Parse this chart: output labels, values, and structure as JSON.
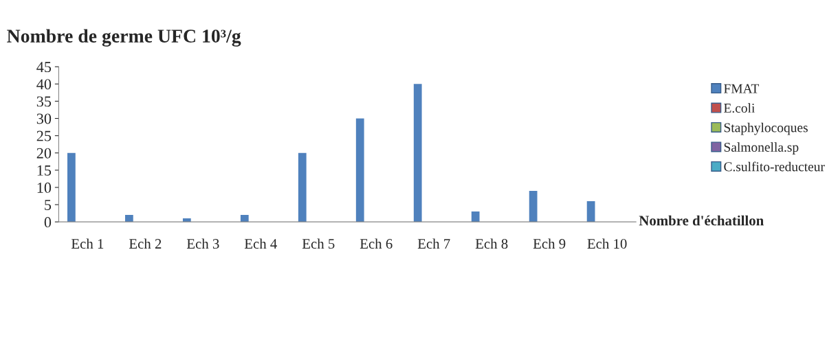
{
  "chart_data": {
    "type": "bar",
    "title": "Nombre de germe UFC 10³/g",
    "xlabel": "Nombre d'échatillon",
    "categories": [
      "Ech 1",
      "Ech 2",
      "Ech 3",
      "Ech 4",
      "Ech 5",
      "Ech 6",
      "Ech 7",
      "Ech 8",
      "Ech 9",
      "Ech 10"
    ],
    "series": [
      {
        "name": "FMAT",
        "color": "#4f81bd",
        "values": [
          20,
          2,
          1,
          2,
          20,
          30,
          40,
          3,
          9,
          6
        ]
      },
      {
        "name": "E.coli",
        "color": "#c0504d",
        "values": [
          0,
          0,
          0,
          0,
          0,
          0,
          0,
          0,
          0,
          0
        ]
      },
      {
        "name": "Staphylocoques",
        "color": "#9bbb59",
        "values": [
          0,
          0,
          0,
          0,
          0,
          0,
          0,
          0,
          0,
          0
        ]
      },
      {
        "name": "Salmonella.sp",
        "color": "#8064a2",
        "values": [
          0,
          0,
          0,
          0,
          0,
          0,
          0,
          0,
          0,
          0
        ]
      },
      {
        "name": "C.sulfito-reducteur",
        "color": "#4bacc6",
        "values": [
          0,
          0,
          0,
          0,
          0,
          0,
          0,
          0,
          0,
          0
        ]
      }
    ],
    "ylim": [
      0,
      45
    ],
    "yticks": [
      0,
      5,
      10,
      15,
      20,
      25,
      30,
      35,
      40,
      45
    ],
    "grid": false,
    "legend": "right"
  }
}
